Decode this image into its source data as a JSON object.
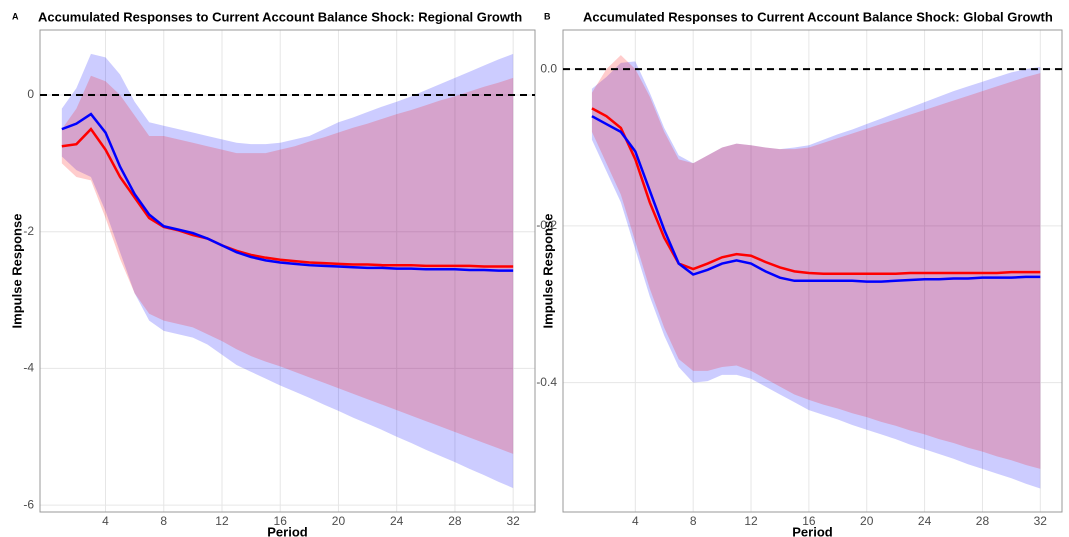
{
  "chart_data": [
    {
      "type": "line",
      "panel_label": "A",
      "title": "Accumulated Responses to Current Account Balance Shock: Regional Growth",
      "x_label": "Period",
      "y_label": "Impulse Response",
      "x": [
        1,
        2,
        3,
        4,
        5,
        6,
        7,
        8,
        9,
        10,
        11,
        12,
        13,
        14,
        15,
        16,
        17,
        18,
        19,
        20,
        21,
        22,
        23,
        24,
        25,
        26,
        27,
        28,
        29,
        30,
        31,
        32
      ],
      "xlim": [
        -0.5,
        33.5
      ],
      "ylim": [
        -6.1,
        0.95
      ],
      "xticks": [
        4,
        8,
        12,
        16,
        20,
        24,
        28,
        32
      ],
      "yticks": [
        0,
        -2,
        -4,
        -6
      ],
      "grid": true,
      "hline": 0,
      "series": [
        {
          "color": "#0000ff",
          "values": [
            -0.5,
            -0.42,
            -0.28,
            -0.55,
            -1.05,
            -1.45,
            -1.75,
            -1.92,
            -1.97,
            -2.02,
            -2.1,
            -2.2,
            -2.3,
            -2.37,
            -2.42,
            -2.45,
            -2.47,
            -2.49,
            -2.5,
            -2.51,
            -2.52,
            -2.53,
            -2.53,
            -2.54,
            -2.54,
            -2.55,
            -2.55,
            -2.55,
            -2.56,
            -2.56,
            -2.57,
            -2.57
          ],
          "upper": [
            -0.2,
            0.1,
            0.6,
            0.55,
            0.3,
            -0.1,
            -0.4,
            -0.45,
            -0.5,
            -0.55,
            -0.6,
            -0.65,
            -0.7,
            -0.72,
            -0.72,
            -0.7,
            -0.65,
            -0.6,
            -0.5,
            -0.4,
            -0.33,
            -0.25,
            -0.17,
            -0.1,
            -0.02,
            0.07,
            0.16,
            0.25,
            0.34,
            0.43,
            0.52,
            0.6
          ],
          "lower": [
            -0.9,
            -1.1,
            -1.2,
            -1.7,
            -2.3,
            -2.9,
            -3.3,
            -3.45,
            -3.5,
            -3.55,
            -3.65,
            -3.8,
            -3.95,
            -4.05,
            -4.15,
            -4.25,
            -4.34,
            -4.43,
            -4.53,
            -4.62,
            -4.72,
            -4.81,
            -4.9,
            -5.0,
            -5.09,
            -5.19,
            -5.28,
            -5.37,
            -5.47,
            -5.56,
            -5.66,
            -5.75
          ]
        },
        {
          "color": "#ff0000",
          "values": [
            -0.75,
            -0.72,
            -0.5,
            -0.8,
            -1.2,
            -1.5,
            -1.8,
            -1.93,
            -1.98,
            -2.05,
            -2.1,
            -2.2,
            -2.28,
            -2.34,
            -2.38,
            -2.41,
            -2.43,
            -2.45,
            -2.46,
            -2.47,
            -2.48,
            -2.48,
            -2.49,
            -2.49,
            -2.49,
            -2.5,
            -2.5,
            -2.5,
            -2.5,
            -2.51,
            -2.51,
            -2.51
          ],
          "upper": [
            -0.5,
            -0.2,
            0.28,
            0.2,
            0,
            -0.3,
            -0.6,
            -0.6,
            -0.65,
            -0.7,
            -0.75,
            -0.8,
            -0.85,
            -0.85,
            -0.85,
            -0.8,
            -0.75,
            -0.68,
            -0.62,
            -0.55,
            -0.48,
            -0.42,
            -0.35,
            -0.28,
            -0.22,
            -0.15,
            -0.08,
            -0.02,
            0.05,
            0.12,
            0.18,
            0.25
          ],
          "lower": [
            -1.0,
            -1.2,
            -1.25,
            -1.8,
            -2.4,
            -2.9,
            -3.2,
            -3.3,
            -3.35,
            -3.4,
            -3.5,
            -3.6,
            -3.72,
            -3.82,
            -3.9,
            -3.97,
            -4.05,
            -4.13,
            -4.21,
            -4.29,
            -4.37,
            -4.45,
            -4.53,
            -4.61,
            -4.69,
            -4.77,
            -4.85,
            -4.93,
            -5.01,
            -5.09,
            -5.17,
            -5.25
          ]
        }
      ]
    },
    {
      "type": "line",
      "panel_label": "B",
      "title": "Accumulated Responses to Current Account Balance Shock: Global Growth",
      "x_label": "Period",
      "y_label": "Impulse Response",
      "x": [
        1,
        2,
        3,
        4,
        5,
        6,
        7,
        8,
        9,
        10,
        11,
        12,
        13,
        14,
        15,
        16,
        17,
        18,
        19,
        20,
        21,
        22,
        23,
        24,
        25,
        26,
        27,
        28,
        29,
        30,
        31,
        32
      ],
      "xlim": [
        -1,
        33.5
      ],
      "ylim": [
        -0.565,
        0.05
      ],
      "xticks": [
        4,
        8,
        12,
        16,
        20,
        24,
        28,
        32
      ],
      "yticks": [
        {
          "value": 0,
          "label": "0.0"
        },
        -0.2,
        -0.4
      ],
      "grid": true,
      "hline": 0,
      "series": [
        {
          "color": "#0000ff",
          "values": [
            -0.06,
            -0.07,
            -0.08,
            -0.105,
            -0.155,
            -0.205,
            -0.248,
            -0.262,
            -0.256,
            -0.248,
            -0.244,
            -0.248,
            -0.258,
            -0.266,
            -0.27,
            -0.27,
            -0.27,
            -0.27,
            -0.27,
            -0.271,
            -0.271,
            -0.27,
            -0.269,
            -0.268,
            -0.268,
            -0.267,
            -0.267,
            -0.266,
            -0.266,
            -0.266,
            -0.265,
            -0.265
          ],
          "upper": [
            -0.025,
            -0.01,
            0.008,
            0.01,
            -0.03,
            -0.075,
            -0.11,
            -0.12,
            -0.11,
            -0.1,
            -0.095,
            -0.097,
            -0.1,
            -0.102,
            -0.1,
            -0.097,
            -0.09,
            -0.083,
            -0.077,
            -0.07,
            -0.063,
            -0.056,
            -0.049,
            -0.042,
            -0.035,
            -0.028,
            -0.022,
            -0.016,
            -0.01,
            -0.004,
            0.0,
            0.003
          ],
          "lower": [
            -0.09,
            -0.13,
            -0.17,
            -0.23,
            -0.29,
            -0.34,
            -0.38,
            -0.4,
            -0.398,
            -0.39,
            -0.39,
            -0.395,
            -0.405,
            -0.415,
            -0.425,
            -0.435,
            -0.441,
            -0.447,
            -0.454,
            -0.46,
            -0.466,
            -0.472,
            -0.479,
            -0.485,
            -0.491,
            -0.497,
            -0.504,
            -0.51,
            -0.516,
            -0.522,
            -0.529,
            -0.535
          ]
        },
        {
          "color": "#ff0000",
          "values": [
            -0.05,
            -0.06,
            -0.075,
            -0.115,
            -0.17,
            -0.215,
            -0.248,
            -0.255,
            -0.248,
            -0.24,
            -0.236,
            -0.238,
            -0.246,
            -0.253,
            -0.258,
            -0.26,
            -0.261,
            -0.261,
            -0.261,
            -0.261,
            -0.261,
            -0.261,
            -0.26,
            -0.26,
            -0.26,
            -0.26,
            -0.26,
            -0.26,
            -0.26,
            -0.259,
            -0.259,
            -0.259
          ],
          "upper": [
            -0.03,
            0.0,
            0.018,
            0.0,
            -0.035,
            -0.08,
            -0.115,
            -0.12,
            -0.11,
            -0.1,
            -0.095,
            -0.097,
            -0.1,
            -0.102,
            -0.102,
            -0.1,
            -0.094,
            -0.088,
            -0.082,
            -0.076,
            -0.07,
            -0.064,
            -0.058,
            -0.052,
            -0.046,
            -0.04,
            -0.034,
            -0.028,
            -0.022,
            -0.016,
            -0.01,
            -0.005
          ],
          "lower": [
            -0.08,
            -0.12,
            -0.16,
            -0.22,
            -0.28,
            -0.33,
            -0.37,
            -0.385,
            -0.385,
            -0.38,
            -0.378,
            -0.385,
            -0.395,
            -0.405,
            -0.415,
            -0.422,
            -0.428,
            -0.433,
            -0.439,
            -0.444,
            -0.45,
            -0.455,
            -0.461,
            -0.466,
            -0.472,
            -0.477,
            -0.483,
            -0.488,
            -0.494,
            -0.499,
            -0.505,
            -0.51
          ]
        }
      ]
    }
  ]
}
